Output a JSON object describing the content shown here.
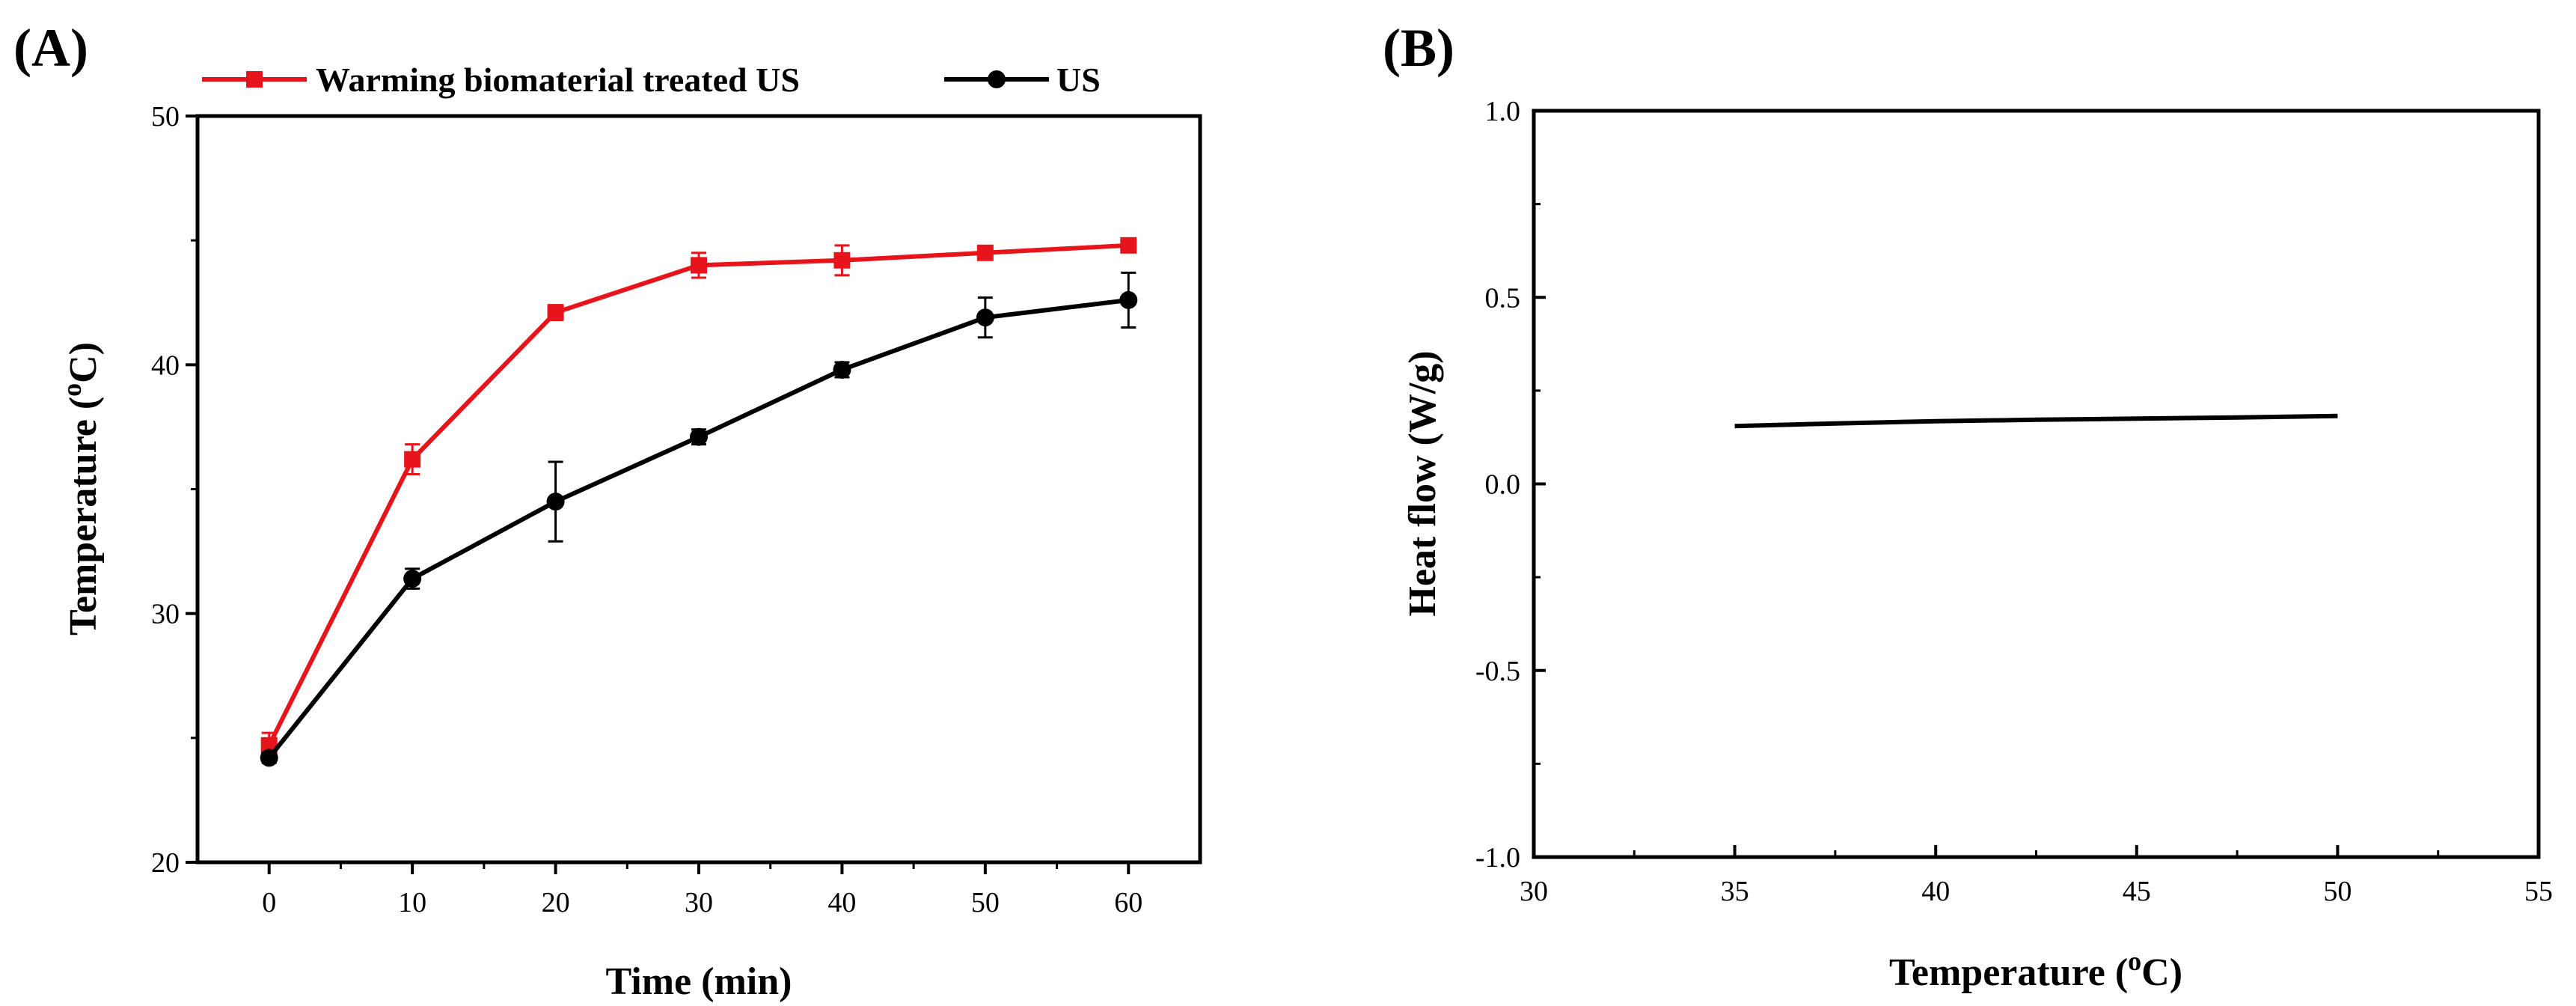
{
  "figure": {
    "panel_a_label": "(A)",
    "panel_b_label": "(B)"
  },
  "chart_data": [
    {
      "type": "line",
      "panel": "(A)",
      "xlabel": "Time (min)",
      "ylabel_main": "Temperature (",
      "ylabel_sup": "o",
      "ylabel_tail": "C)",
      "xlim": [
        -5,
        65
      ],
      "ylim": [
        20,
        50
      ],
      "xticks": [
        0,
        10,
        20,
        30,
        40,
        50,
        60
      ],
      "yticks": [
        20,
        30,
        40,
        50
      ],
      "legend_position": "top",
      "series": [
        {
          "name": "Warming biomaterial treated US",
          "color": "#e8141b",
          "marker": "square",
          "x": [
            0,
            10,
            20,
            30,
            40,
            50,
            60
          ],
          "y": [
            24.7,
            36.2,
            42.1,
            44.0,
            44.2,
            44.5,
            44.8
          ],
          "err": [
            0.5,
            0.6,
            0.3,
            0.5,
            0.6,
            0.2,
            0.2
          ]
        },
        {
          "name": "US",
          "color": "#000000",
          "marker": "circle",
          "x": [
            0,
            10,
            20,
            30,
            40,
            50,
            60
          ],
          "y": [
            24.2,
            31.4,
            34.5,
            37.1,
            39.8,
            41.9,
            42.6
          ],
          "err": [
            0.2,
            0.4,
            1.6,
            0.3,
            0.3,
            0.8,
            1.1
          ]
        }
      ]
    },
    {
      "type": "line",
      "panel": "(B)",
      "xlabel_main": "Temperature (",
      "xlabel_sup": "o",
      "xlabel_tail": "C)",
      "ylabel": "Heat flow (W/g)",
      "xlim": [
        30,
        55
      ],
      "ylim": [
        -1.0,
        1.0
      ],
      "xticks": [
        30,
        35,
        40,
        45,
        50,
        55
      ],
      "yticks": [
        -1.0,
        -0.5,
        0.0,
        0.5,
        1.0
      ],
      "ytick_labels": [
        "-1.0",
        "-0.5",
        "0.0",
        "0.5",
        "1.0"
      ],
      "series": [
        {
          "name": "Heat flow",
          "color": "#000000",
          "x": [
            35,
            37.5,
            40,
            42.5,
            45,
            47.5,
            50
          ],
          "y": [
            0.155,
            0.162,
            0.168,
            0.172,
            0.175,
            0.178,
            0.182
          ]
        }
      ]
    }
  ]
}
